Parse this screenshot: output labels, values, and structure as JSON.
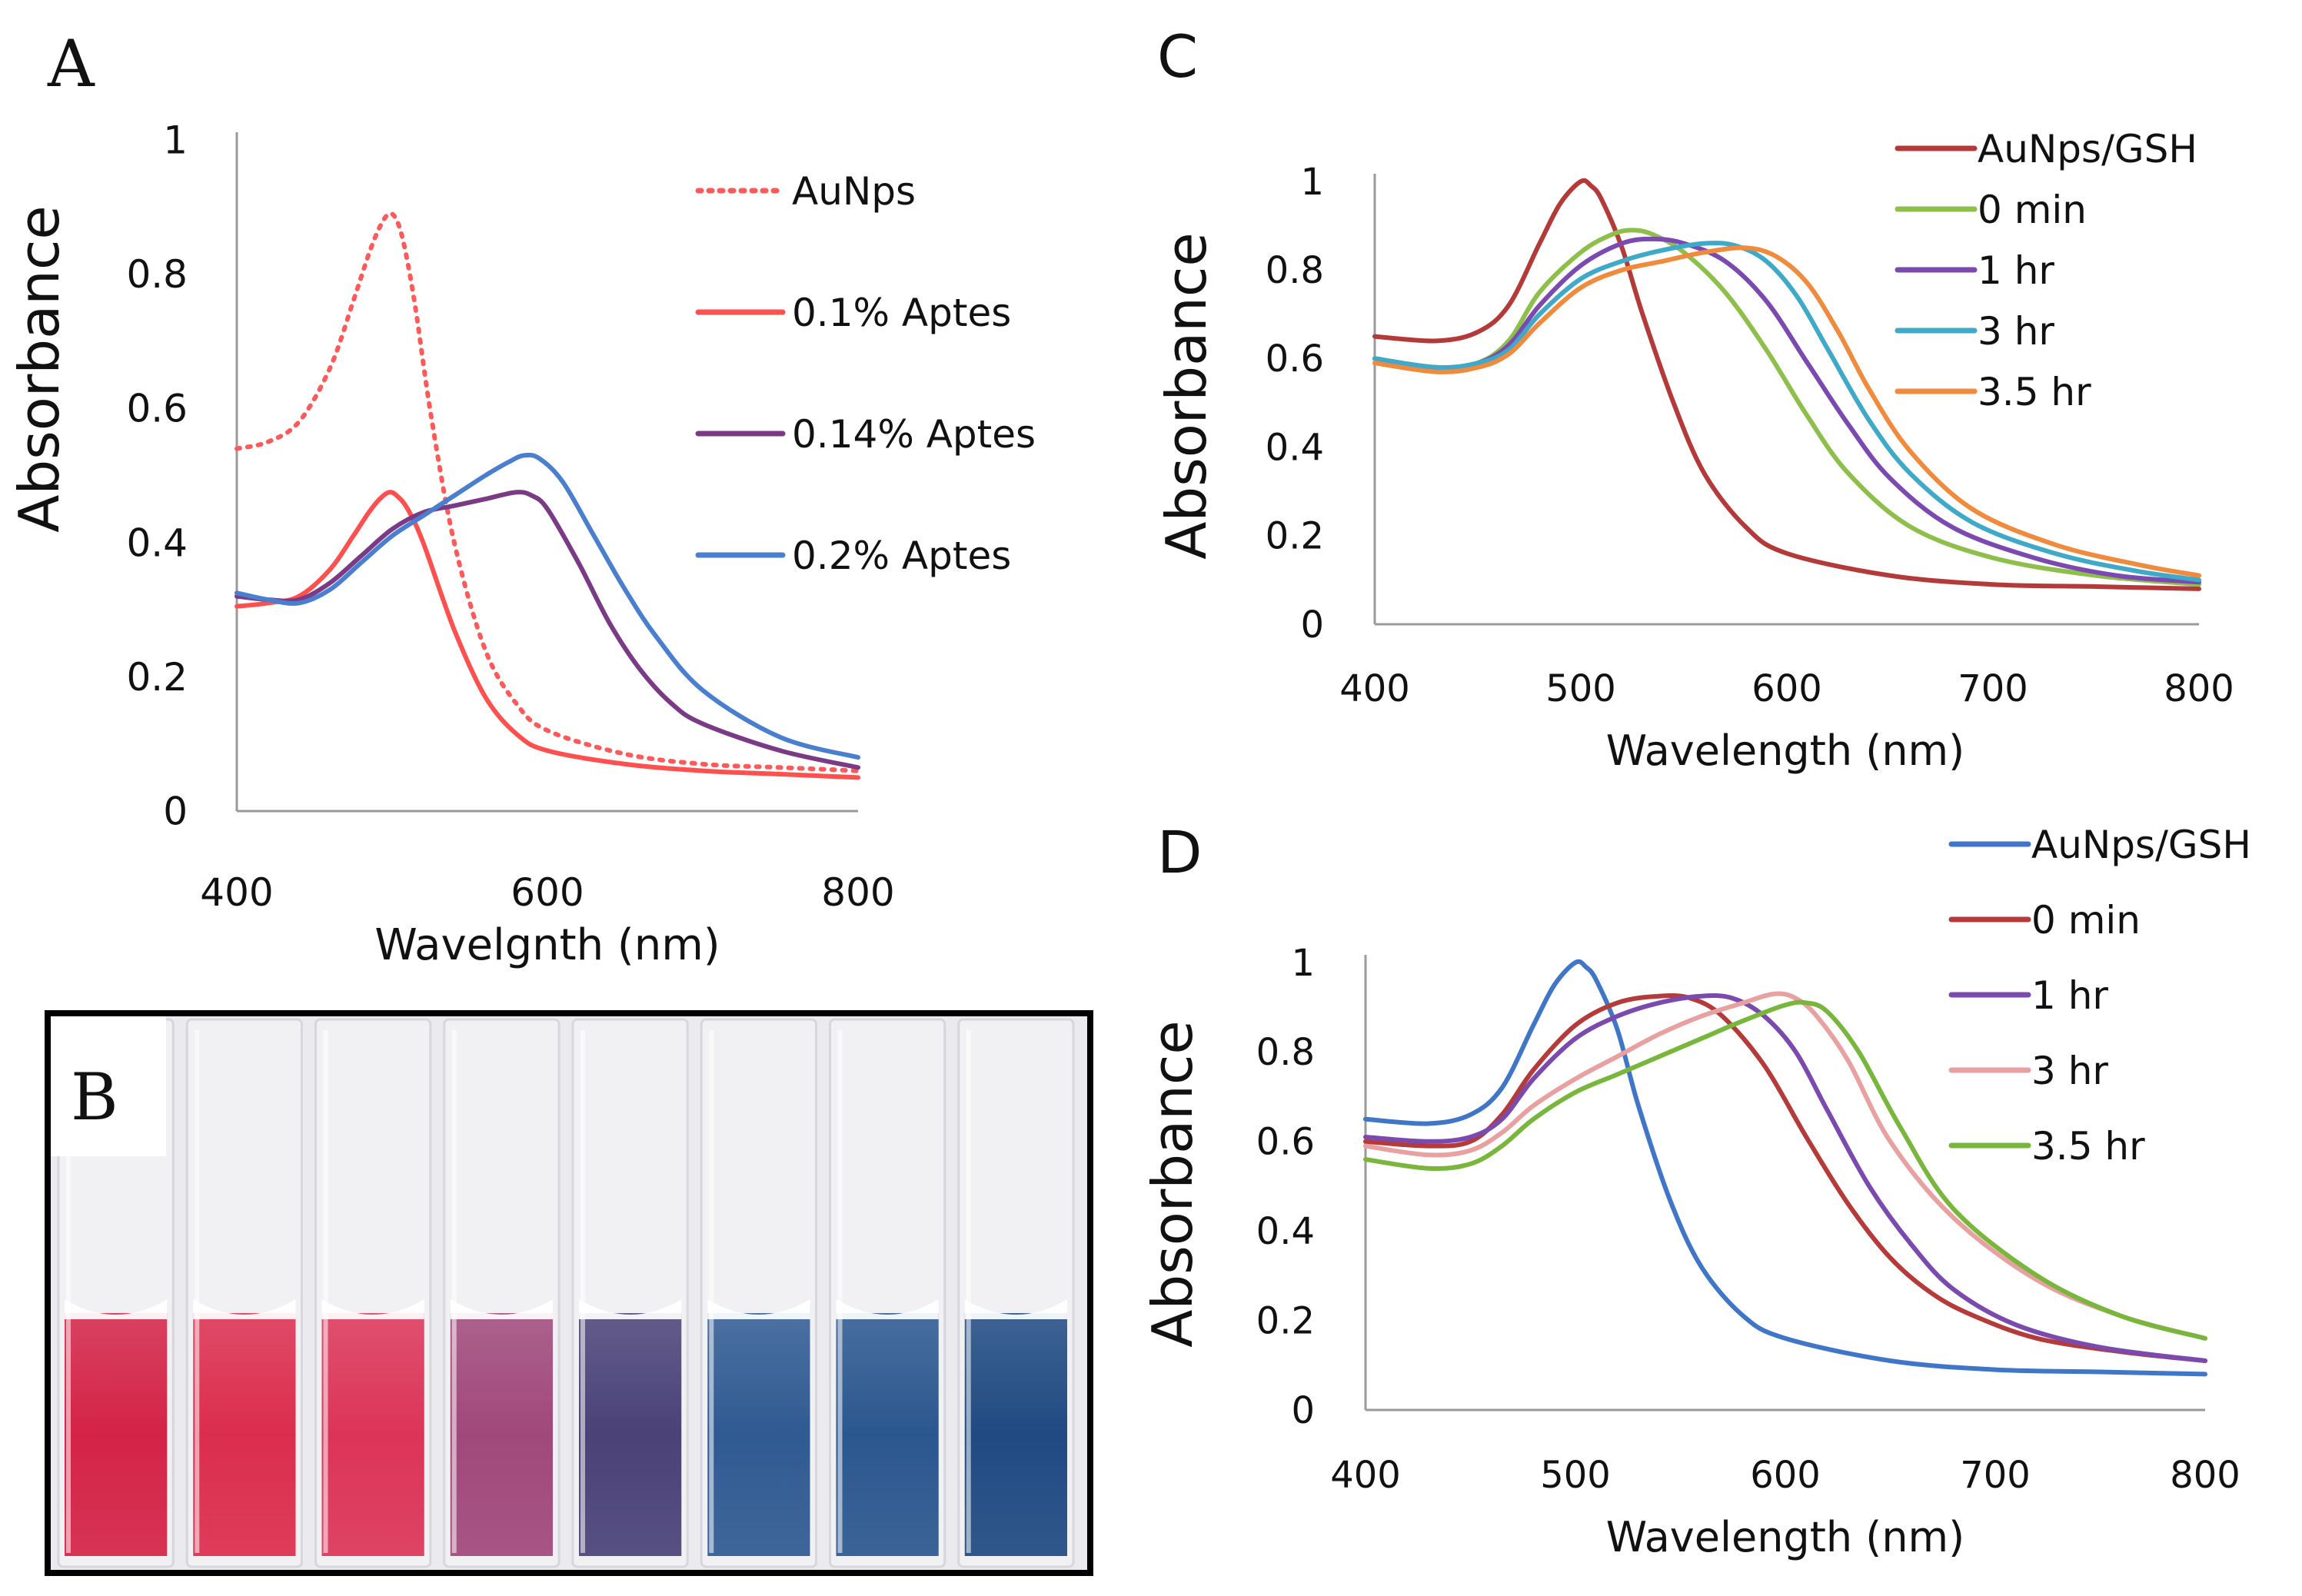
{
  "panels": {
    "a": {
      "letter": "A"
    },
    "b": {
      "letter": "B"
    },
    "c": {
      "letter": "C"
    },
    "d": {
      "letter": "D"
    }
  },
  "photo": {
    "cuvette_colors": [
      "#d42346",
      "#dc2d4d",
      "#dc3458",
      "#a0487a",
      "#4a4278",
      "#2f5a92",
      "#2b578f",
      "#1f4a82"
    ]
  },
  "chart_data": [
    {
      "id": "a",
      "type": "line",
      "title": "",
      "xlabel": "Wavelgnth (nm)",
      "ylabel": "Absorbance",
      "xlim": [
        400,
        800
      ],
      "ylim": [
        0,
        1
      ],
      "xticks": [
        400,
        600,
        800
      ],
      "yticks": [
        0,
        0.2,
        0.4,
        0.6,
        0.8,
        1
      ],
      "ytick_labels": [
        "0",
        "0.2",
        "0.4",
        "0.6",
        "0.8",
        "1"
      ],
      "grid": false,
      "legend_position": "right",
      "series": [
        {
          "name": "AuNps",
          "color": "#ff5a5a",
          "dash": true,
          "x": [
            400,
            420,
            440,
            460,
            475,
            485,
            492,
            498,
            503,
            508,
            515,
            525,
            540,
            560,
            580,
            600,
            650,
            700,
            750,
            800
          ],
          "y": [
            0.54,
            0.55,
            0.58,
            0.66,
            0.76,
            0.83,
            0.87,
            0.89,
            0.88,
            0.84,
            0.75,
            0.59,
            0.4,
            0.24,
            0.16,
            0.12,
            0.085,
            0.07,
            0.065,
            0.06
          ]
        },
        {
          "name": "0.1% Aptes",
          "color": "#ff5050",
          "dash": false,
          "x": [
            400,
            420,
            440,
            460,
            475,
            485,
            492,
            498,
            503,
            510,
            520,
            540,
            560,
            580,
            600,
            650,
            700,
            750,
            800
          ],
          "y": [
            0.305,
            0.31,
            0.32,
            0.36,
            0.41,
            0.445,
            0.465,
            0.475,
            0.47,
            0.45,
            0.4,
            0.27,
            0.17,
            0.115,
            0.09,
            0.07,
            0.06,
            0.055,
            0.05
          ]
        },
        {
          "name": "0.14% Aptes",
          "color": "#7b3a85",
          "dash": false,
          "x": [
            400,
            420,
            440,
            460,
            480,
            500,
            520,
            540,
            560,
            580,
            590,
            600,
            620,
            640,
            660,
            680,
            700,
            750,
            800
          ],
          "y": [
            0.32,
            0.315,
            0.315,
            0.34,
            0.38,
            0.42,
            0.445,
            0.455,
            0.465,
            0.475,
            0.47,
            0.45,
            0.37,
            0.28,
            0.21,
            0.16,
            0.13,
            0.09,
            0.065
          ]
        },
        {
          "name": "0.2% Aptes",
          "color": "#4a7fd0",
          "dash": false,
          "x": [
            400,
            420,
            440,
            460,
            480,
            500,
            520,
            540,
            560,
            575,
            585,
            595,
            610,
            630,
            650,
            670,
            700,
            750,
            800
          ],
          "y": [
            0.325,
            0.315,
            0.31,
            0.33,
            0.37,
            0.41,
            0.44,
            0.47,
            0.5,
            0.52,
            0.53,
            0.525,
            0.49,
            0.41,
            0.33,
            0.26,
            0.18,
            0.11,
            0.08
          ]
        }
      ]
    },
    {
      "id": "c",
      "type": "line",
      "title": "",
      "xlabel": "Wavelength (nm)",
      "ylabel": "Absorbance",
      "xlim": [
        400,
        800
      ],
      "ylim": [
        0,
        1
      ],
      "xticks": [
        400,
        500,
        600,
        700,
        800
      ],
      "yticks": [
        0,
        0.2,
        0.4,
        0.6,
        0.8,
        1
      ],
      "ytick_labels": [
        "0",
        "0.2",
        "0.4",
        "0.6",
        "0.8",
        "1"
      ],
      "grid": false,
      "legend_position": "top-right",
      "series": [
        {
          "name": "AuNps/GSH",
          "color": "#b43a3a",
          "x": [
            400,
            430,
            450,
            465,
            480,
            490,
            500,
            505,
            510,
            520,
            530,
            545,
            560,
            580,
            600,
            650,
            700,
            750,
            800
          ],
          "y": [
            0.65,
            0.64,
            0.66,
            0.72,
            0.86,
            0.95,
            1.0,
            0.99,
            0.96,
            0.85,
            0.7,
            0.5,
            0.34,
            0.22,
            0.16,
            0.11,
            0.09,
            0.085,
            0.08
          ]
        },
        {
          "name": "0 min",
          "color": "#8ebf4a",
          "x": [
            400,
            430,
            450,
            465,
            480,
            500,
            515,
            525,
            535,
            550,
            570,
            590,
            610,
            630,
            660,
            700,
            750,
            800
          ],
          "y": [
            0.6,
            0.58,
            0.59,
            0.64,
            0.75,
            0.84,
            0.88,
            0.89,
            0.88,
            0.84,
            0.75,
            0.62,
            0.47,
            0.34,
            0.22,
            0.15,
            0.11,
            0.09
          ]
        },
        {
          "name": "1 hr",
          "color": "#7b4ab0",
          "x": [
            400,
            430,
            450,
            465,
            480,
            500,
            520,
            535,
            550,
            570,
            590,
            610,
            630,
            650,
            680,
            720,
            760,
            800
          ],
          "y": [
            0.6,
            0.58,
            0.59,
            0.63,
            0.72,
            0.81,
            0.86,
            0.87,
            0.86,
            0.82,
            0.73,
            0.59,
            0.45,
            0.33,
            0.22,
            0.15,
            0.11,
            0.095
          ]
        },
        {
          "name": "3 hr",
          "color": "#3fa9c9",
          "x": [
            400,
            430,
            450,
            465,
            480,
            500,
            520,
            540,
            560,
            575,
            590,
            605,
            620,
            640,
            660,
            690,
            730,
            770,
            800
          ],
          "y": [
            0.6,
            0.58,
            0.59,
            0.62,
            0.7,
            0.78,
            0.82,
            0.845,
            0.86,
            0.855,
            0.82,
            0.74,
            0.62,
            0.46,
            0.34,
            0.23,
            0.16,
            0.12,
            0.1
          ]
        },
        {
          "name": "3.5 hr",
          "color": "#f08a3c",
          "x": [
            400,
            430,
            450,
            465,
            480,
            500,
            520,
            540,
            560,
            580,
            595,
            610,
            625,
            640,
            660,
            690,
            730,
            770,
            800
          ],
          "y": [
            0.59,
            0.57,
            0.58,
            0.61,
            0.68,
            0.76,
            0.8,
            0.82,
            0.84,
            0.85,
            0.83,
            0.77,
            0.66,
            0.53,
            0.39,
            0.26,
            0.18,
            0.135,
            0.11
          ]
        }
      ]
    },
    {
      "id": "d",
      "type": "line",
      "title": "",
      "xlabel": "Wavelength (nm)",
      "ylabel": "Absorbance",
      "xlim": [
        400,
        800
      ],
      "ylim": [
        0,
        1
      ],
      "xticks": [
        400,
        500,
        600,
        700,
        800
      ],
      "yticks": [
        0,
        0.2,
        0.4,
        0.6,
        0.8,
        1
      ],
      "ytick_labels": [
        "0",
        "0.2",
        "0.4",
        "0.6",
        "0.8",
        "1"
      ],
      "grid": false,
      "legend_position": "top-right",
      "series": [
        {
          "name": "AuNps/GSH",
          "color": "#3f76c8",
          "x": [
            400,
            430,
            450,
            465,
            480,
            490,
            500,
            505,
            510,
            520,
            530,
            545,
            560,
            580,
            600,
            650,
            700,
            750,
            800
          ],
          "y": [
            0.65,
            0.64,
            0.66,
            0.72,
            0.86,
            0.95,
            1.0,
            0.99,
            0.96,
            0.85,
            0.68,
            0.47,
            0.32,
            0.21,
            0.16,
            0.11,
            0.09,
            0.085,
            0.08
          ]
        },
        {
          "name": "0 min",
          "color": "#b53a3a",
          "x": [
            400,
            430,
            450,
            465,
            480,
            500,
            520,
            540,
            555,
            570,
            590,
            610,
            630,
            650,
            670,
            690,
            720,
            760,
            800
          ],
          "y": [
            0.6,
            0.59,
            0.6,
            0.66,
            0.76,
            0.86,
            0.91,
            0.925,
            0.92,
            0.88,
            0.77,
            0.61,
            0.46,
            0.34,
            0.26,
            0.21,
            0.16,
            0.13,
            0.11
          ]
        },
        {
          "name": "1 hr",
          "color": "#7a4aae",
          "x": [
            400,
            430,
            450,
            465,
            480,
            500,
            520,
            540,
            560,
            575,
            590,
            605,
            620,
            640,
            660,
            680,
            710,
            750,
            800
          ],
          "y": [
            0.61,
            0.6,
            0.61,
            0.65,
            0.74,
            0.83,
            0.88,
            0.91,
            0.925,
            0.92,
            0.88,
            0.8,
            0.67,
            0.5,
            0.37,
            0.27,
            0.19,
            0.14,
            0.11
          ]
        },
        {
          "name": "3 hr",
          "color": "#e8a0a0",
          "x": [
            400,
            430,
            450,
            465,
            480,
            500,
            520,
            540,
            560,
            580,
            595,
            605,
            615,
            630,
            650,
            680,
            720,
            760,
            800
          ],
          "y": [
            0.59,
            0.57,
            0.58,
            0.62,
            0.68,
            0.74,
            0.79,
            0.84,
            0.88,
            0.91,
            0.93,
            0.92,
            0.88,
            0.78,
            0.6,
            0.43,
            0.29,
            0.21,
            0.16
          ]
        },
        {
          "name": "3.5 hr",
          "color": "#78b63c",
          "x": [
            400,
            430,
            450,
            465,
            480,
            500,
            520,
            540,
            560,
            580,
            600,
            610,
            620,
            635,
            655,
            680,
            720,
            760,
            800
          ],
          "y": [
            0.56,
            0.54,
            0.55,
            0.59,
            0.65,
            0.71,
            0.75,
            0.79,
            0.83,
            0.87,
            0.905,
            0.91,
            0.89,
            0.8,
            0.63,
            0.45,
            0.3,
            0.21,
            0.16
          ]
        }
      ]
    }
  ]
}
